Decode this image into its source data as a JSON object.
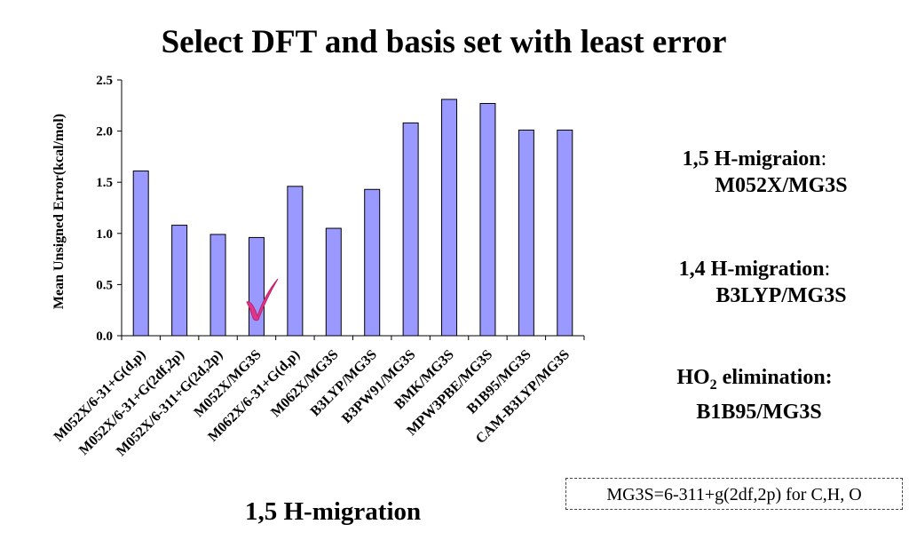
{
  "title": "Select DFT and basis set with least error",
  "caption": "1,5 H-migration",
  "notes": [
    {
      "label": "1,5 H-migraion",
      "colon": ":",
      "value": "M052X/MG3S"
    },
    {
      "label": "1,4 H-migration",
      "colon": ":",
      "value": "B3LYP/MG3S"
    },
    {
      "label_main": "HO",
      "label_sub": "2",
      "label_rest": " elimination:",
      "value": "B1B95/MG3S"
    }
  ],
  "basis_note": "MG3S=6-311+g(2df,2p)  for C,H, O",
  "check_icon": "check-mark-icon",
  "chart_data": {
    "type": "bar",
    "title": "",
    "xlabel": "",
    "ylabel": "Mean Unsigned Error(kcal/mol)",
    "ylim": [
      0,
      2.5
    ],
    "yticks": [
      "0.0",
      "0.5",
      "1.0",
      "1.5",
      "2.0",
      "2.5"
    ],
    "categories": [
      "M052X/6-31+G(d,p)",
      "M052X/6-31+G(2df,2p)",
      "M052X/6-311+G(2d,2p)",
      "M052X/MG3S",
      "M062X/6-31+G(d,p)",
      "M062X/MG3S",
      "B3LYP/MG3S",
      "B3PW91/MG3S",
      "BMK/MG3S",
      "MPW3PBE/MG3S",
      "B1B95/MG3S",
      "CAM-B3LYP/MG3S"
    ],
    "values": [
      1.61,
      1.08,
      0.99,
      0.96,
      1.46,
      1.05,
      1.43,
      2.08,
      2.31,
      2.27,
      2.01,
      2.01
    ],
    "highlight_index": 3,
    "bar_color": "#9999ff",
    "grid": false,
    "legend": "none"
  }
}
